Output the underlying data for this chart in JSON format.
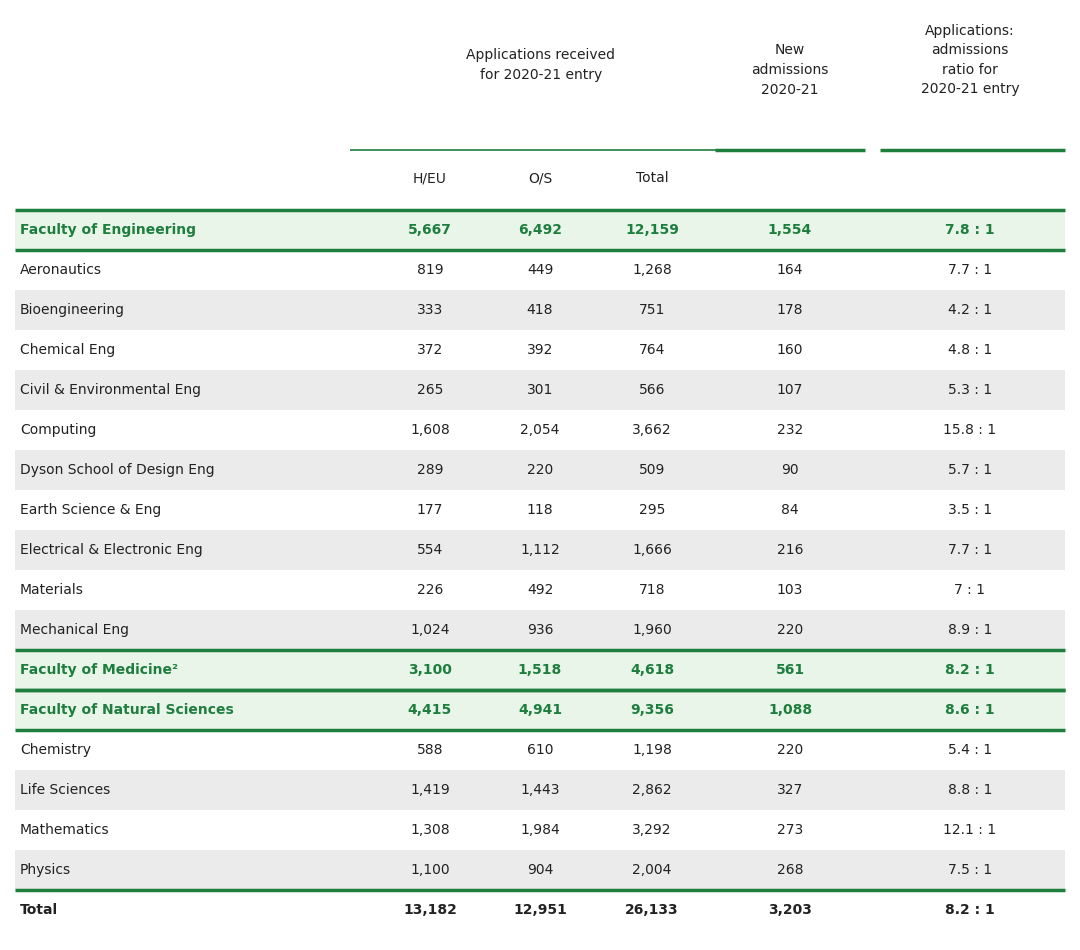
{
  "background_color": "#ffffff",
  "faculty_bg": "#eaf5ea",
  "subrow_even_bg": "#ebebeb",
  "subrow_odd_bg": "#ffffff",
  "green_color": "#1e7e3e",
  "dark_text": "#222222",
  "rows": [
    {
      "name": "Faculty of Engineering",
      "heu": "5,667",
      "os": "6,492",
      "total": "12,159",
      "new_adm": "1,554",
      "ratio": "7.8 : 1",
      "is_faculty": true,
      "is_total": false
    },
    {
      "name": "Aeronautics",
      "heu": "819",
      "os": "449",
      "total": "1,268",
      "new_adm": "164",
      "ratio": "7.7 : 1",
      "is_faculty": false,
      "is_total": false
    },
    {
      "name": "Bioengineering",
      "heu": "333",
      "os": "418",
      "total": "751",
      "new_adm": "178",
      "ratio": "4.2 : 1",
      "is_faculty": false,
      "is_total": false
    },
    {
      "name": "Chemical Eng",
      "heu": "372",
      "os": "392",
      "total": "764",
      "new_adm": "160",
      "ratio": "4.8 : 1",
      "is_faculty": false,
      "is_total": false
    },
    {
      "name": "Civil & Environmental Eng",
      "heu": "265",
      "os": "301",
      "total": "566",
      "new_adm": "107",
      "ratio": "5.3 : 1",
      "is_faculty": false,
      "is_total": false
    },
    {
      "name": "Computing",
      "heu": "1,608",
      "os": "2,054",
      "total": "3,662",
      "new_adm": "232",
      "ratio": "15.8 : 1",
      "is_faculty": false,
      "is_total": false
    },
    {
      "name": "Dyson School of Design Eng",
      "heu": "289",
      "os": "220",
      "total": "509",
      "new_adm": "90",
      "ratio": "5.7 : 1",
      "is_faculty": false,
      "is_total": false
    },
    {
      "name": "Earth Science & Eng",
      "heu": "177",
      "os": "118",
      "total": "295",
      "new_adm": "84",
      "ratio": "3.5 : 1",
      "is_faculty": false,
      "is_total": false
    },
    {
      "name": "Electrical & Electronic Eng",
      "heu": "554",
      "os": "1,112",
      "total": "1,666",
      "new_adm": "216",
      "ratio": "7.7 : 1",
      "is_faculty": false,
      "is_total": false
    },
    {
      "name": "Materials",
      "heu": "226",
      "os": "492",
      "total": "718",
      "new_adm": "103",
      "ratio": "7 : 1",
      "is_faculty": false,
      "is_total": false
    },
    {
      "name": "Mechanical Eng",
      "heu": "1,024",
      "os": "936",
      "total": "1,960",
      "new_adm": "220",
      "ratio": "8.9 : 1",
      "is_faculty": false,
      "is_total": false
    },
    {
      "name": "Faculty of Medicine²",
      "heu": "3,100",
      "os": "1,518",
      "total": "4,618",
      "new_adm": "561",
      "ratio": "8.2 : 1",
      "is_faculty": true,
      "is_total": false
    },
    {
      "name": "Faculty of Natural Sciences",
      "heu": "4,415",
      "os": "4,941",
      "total": "9,356",
      "new_adm": "1,088",
      "ratio": "8.6 : 1",
      "is_faculty": true,
      "is_total": false
    },
    {
      "name": "Chemistry",
      "heu": "588",
      "os": "610",
      "total": "1,198",
      "new_adm": "220",
      "ratio": "5.4 : 1",
      "is_faculty": false,
      "is_total": false
    },
    {
      "name": "Life Sciences",
      "heu": "1,419",
      "os": "1,443",
      "total": "2,862",
      "new_adm": "327",
      "ratio": "8.8 : 1",
      "is_faculty": false,
      "is_total": false
    },
    {
      "name": "Mathematics",
      "heu": "1,308",
      "os": "1,984",
      "total": "3,292",
      "new_adm": "273",
      "ratio": "12.1 : 1",
      "is_faculty": false,
      "is_total": false
    },
    {
      "name": "Physics",
      "heu": "1,100",
      "os": "904",
      "total": "2,004",
      "new_adm": "268",
      "ratio": "7.5 : 1",
      "is_faculty": false,
      "is_total": false
    },
    {
      "name": "Total",
      "heu": "13,182",
      "os": "12,951",
      "total": "26,133",
      "new_adm": "3,203",
      "ratio": "8.2 : 1",
      "is_faculty": false,
      "is_total": true
    }
  ]
}
